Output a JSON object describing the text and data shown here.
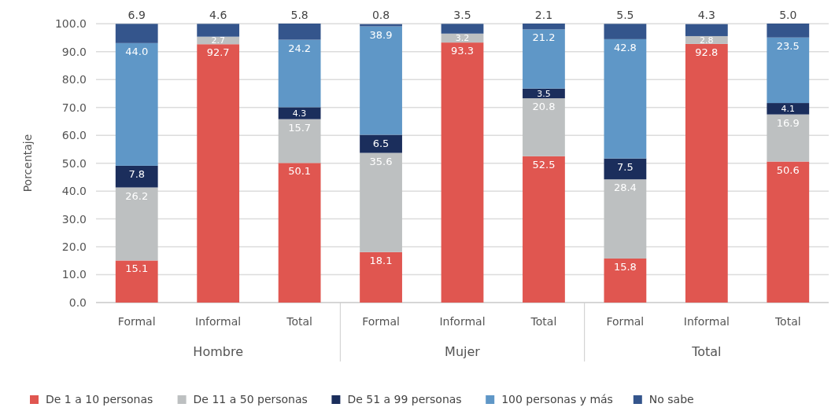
{
  "chart_data": {
    "type": "bar",
    "stacked": true,
    "ylabel": "Porcentaje",
    "categories": [
      "Formal",
      "Informal",
      "Total",
      "Formal",
      "Informal",
      "Total",
      "Formal",
      "Informal",
      "Total"
    ],
    "annotations": [
      "Hombre",
      "Mujer",
      "Total"
    ],
    "series": [
      {
        "name": "De 1 a 10 personas",
        "color": "#e05650",
        "values": [
          15.1,
          92.7,
          50.1,
          18.1,
          93.3,
          52.5,
          15.8,
          92.8,
          50.6
        ],
        "value_labels": [
          "15.1",
          "92.7",
          "50.1",
          "18.1",
          "93.3",
          "52.5",
          "15.8",
          "92.8",
          "50.6"
        ]
      },
      {
        "name": "De 11 a 50 personas",
        "color": "#bdc0c1",
        "values": [
          26.2,
          2.7,
          15.7,
          35.6,
          3.2,
          20.8,
          28.4,
          2.8,
          16.9
        ],
        "value_labels": [
          "26.2",
          "2.7",
          "15.7",
          "35.6",
          "3.2",
          "20.8",
          "28.4",
          "2.8",
          "16.9"
        ]
      },
      {
        "name": "De 51 a 99 personas",
        "color": "#1b2e5c",
        "values": [
          7.8,
          null,
          4.3,
          6.5,
          null,
          3.5,
          7.5,
          null,
          4.1
        ],
        "value_labels": [
          "7.8",
          null,
          "4.3",
          "6.5",
          null,
          "3.5",
          "7.5",
          null,
          "4.1"
        ]
      },
      {
        "name": "100 personas y más",
        "color": "#5f97c7",
        "values": [
          44.0,
          null,
          24.2,
          38.9,
          null,
          21.2,
          42.8,
          null,
          23.5
        ],
        "value_labels": [
          "44.0",
          null,
          "24.2",
          "38.9",
          null,
          "21.2",
          "42.8",
          null,
          "23.5"
        ]
      },
      {
        "name": "No sabe",
        "color": "#34558c",
        "values": [
          6.9,
          4.6,
          5.8,
          0.8,
          3.5,
          2.1,
          5.5,
          4.3,
          5.0
        ],
        "value_labels": [
          "6.9",
          "4.6",
          "5.8",
          "0.8",
          "3.5",
          "2.1",
          "5.5",
          "4.3",
          "5.0"
        ]
      }
    ],
    "ylim": [
      0,
      100.1
    ],
    "yticks": [
      {
        "value": 0,
        "label": "0.0"
      },
      {
        "value": 10,
        "label": "10.0"
      },
      {
        "value": 20,
        "label": "20.0"
      },
      {
        "value": 30,
        "label": "30.0"
      },
      {
        "value": 40,
        "label": "40.0"
      },
      {
        "value": 50,
        "label": "50.0"
      },
      {
        "value": 60,
        "label": "60.0"
      },
      {
        "value": 70,
        "label": "70.0"
      },
      {
        "value": 80,
        "label": "80.0"
      },
      {
        "value": 90,
        "label": "90.0"
      },
      {
        "value": 100,
        "label": "100.0"
      }
    ],
    "grid": "y",
    "legend": "bottom"
  }
}
